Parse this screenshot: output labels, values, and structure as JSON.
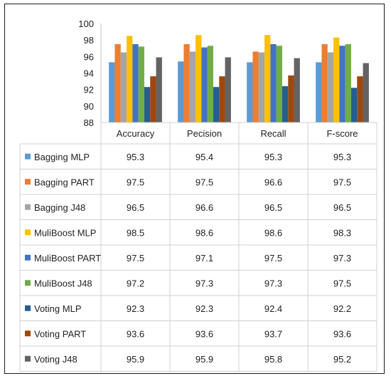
{
  "chart_data": {
    "type": "bar",
    "categories": [
      "Accuracy",
      "Pecision",
      "Recall",
      "F-score"
    ],
    "ylim": [
      88,
      100
    ],
    "yticks": [
      88,
      90,
      92,
      94,
      96,
      98,
      100
    ],
    "grid": false,
    "legend_placement": "left, inside data table",
    "series": [
      {
        "name": "Bagging MLP",
        "color": "#5b9bd5",
        "values": [
          95.3,
          95.4,
          95.3,
          95.3
        ]
      },
      {
        "name": "Bagging PART",
        "color": "#ed7d31",
        "values": [
          97.5,
          97.5,
          96.6,
          97.5
        ]
      },
      {
        "name": "Bagging J48",
        "color": "#a5a5a5",
        "values": [
          96.5,
          96.6,
          96.5,
          96.5
        ]
      },
      {
        "name": "MuliBoost MLP",
        "color": "#ffc000",
        "values": [
          98.5,
          98.6,
          98.6,
          98.3
        ]
      },
      {
        "name": "MuliBoost PART",
        "color": "#4472c4",
        "values": [
          97.5,
          97.1,
          97.5,
          97.3
        ]
      },
      {
        "name": "MuliBoost J48",
        "color": "#70ad47",
        "values": [
          97.2,
          97.3,
          97.3,
          97.5
        ]
      },
      {
        "name": "Voting MLP",
        "color": "#255e91",
        "values": [
          92.3,
          92.3,
          92.4,
          92.2
        ]
      },
      {
        "name": "Voting PART",
        "color": "#9e480e",
        "values": [
          93.6,
          93.6,
          93.7,
          93.6
        ]
      },
      {
        "name": "Voting J48",
        "color": "#636363",
        "values": [
          95.9,
          95.9,
          95.8,
          95.2
        ]
      }
    ]
  }
}
